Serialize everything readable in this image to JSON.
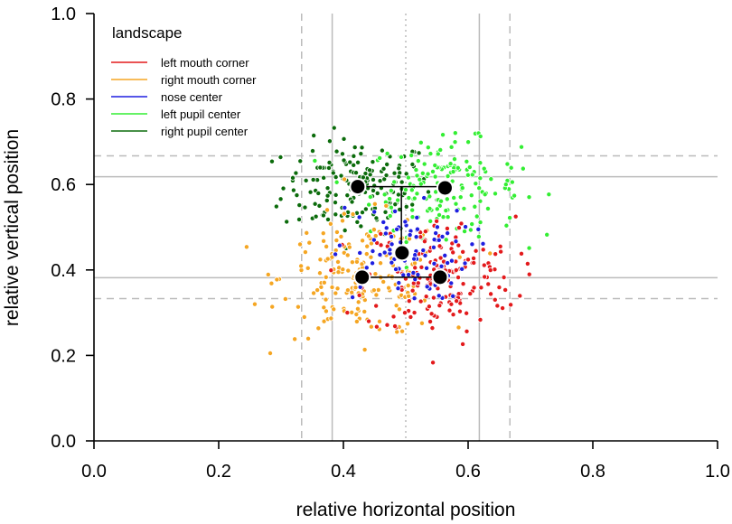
{
  "chart_data": {
    "type": "scatter",
    "title": "",
    "xlabel": "relative horizontal position",
    "ylabel": "relative vertical position",
    "xlim": [
      0,
      1
    ],
    "ylim": [
      0,
      1
    ],
    "x_ticks": [
      "0.0",
      "0.2",
      "0.4",
      "0.6",
      "0.8",
      "1.0"
    ],
    "y_ticks": [
      "0.0",
      "0.2",
      "0.4",
      "0.6",
      "0.8",
      "1.0"
    ],
    "grid": false,
    "legend": {
      "title": "landscape",
      "placement": "top-left",
      "entries": [
        {
          "label": "left mouth corner",
          "color": "#e31a1c"
        },
        {
          "label": "right mouth corner",
          "color": "#f5a623"
        },
        {
          "label": "nose center",
          "color": "#1f1fe0"
        },
        {
          "label": "left pupil center",
          "color": "#33ee33"
        },
        {
          "label": "right pupil center",
          "color": "#0b6b0b"
        }
      ]
    },
    "reference_lines": {
      "vertical_dashed": [
        0.333,
        0.667
      ],
      "vertical_solid": [
        0.382,
        0.618
      ],
      "vertical_dotted": [
        0.5
      ],
      "horizontal_dashed": [
        0.333,
        0.667
      ],
      "horizontal_solid": [
        0.382,
        0.618
      ]
    },
    "series": [
      {
        "name": "left mouth corner",
        "color": "#e31a1c",
        "center": [
          0.555,
          0.383
        ],
        "spread": [
          0.06,
          0.07
        ],
        "count": 180
      },
      {
        "name": "right mouth corner",
        "color": "#f5a623",
        "center": [
          0.43,
          0.383
        ],
        "spread": [
          0.065,
          0.07
        ],
        "count": 200
      },
      {
        "name": "nose center",
        "color": "#1f1fe0",
        "center": [
          0.494,
          0.44
        ],
        "spread": [
          0.055,
          0.055
        ],
        "count": 90
      },
      {
        "name": "left pupil center",
        "color": "#33ee33",
        "center": [
          0.563,
          0.592
        ],
        "spread": [
          0.06,
          0.055
        ],
        "count": 170
      },
      {
        "name": "right pupil center",
        "color": "#0b6b0b",
        "center": [
          0.423,
          0.595
        ],
        "spread": [
          0.06,
          0.055
        ],
        "count": 170
      }
    ],
    "mean_points": [
      {
        "name": "right pupil center",
        "x": 0.423,
        "y": 0.595
      },
      {
        "name": "left pupil center",
        "x": 0.563,
        "y": 0.592
      },
      {
        "name": "nose center",
        "x": 0.494,
        "y": 0.44
      },
      {
        "name": "right mouth corner",
        "x": 0.43,
        "y": 0.383
      },
      {
        "name": "left mouth corner",
        "x": 0.555,
        "y": 0.383
      }
    ]
  }
}
